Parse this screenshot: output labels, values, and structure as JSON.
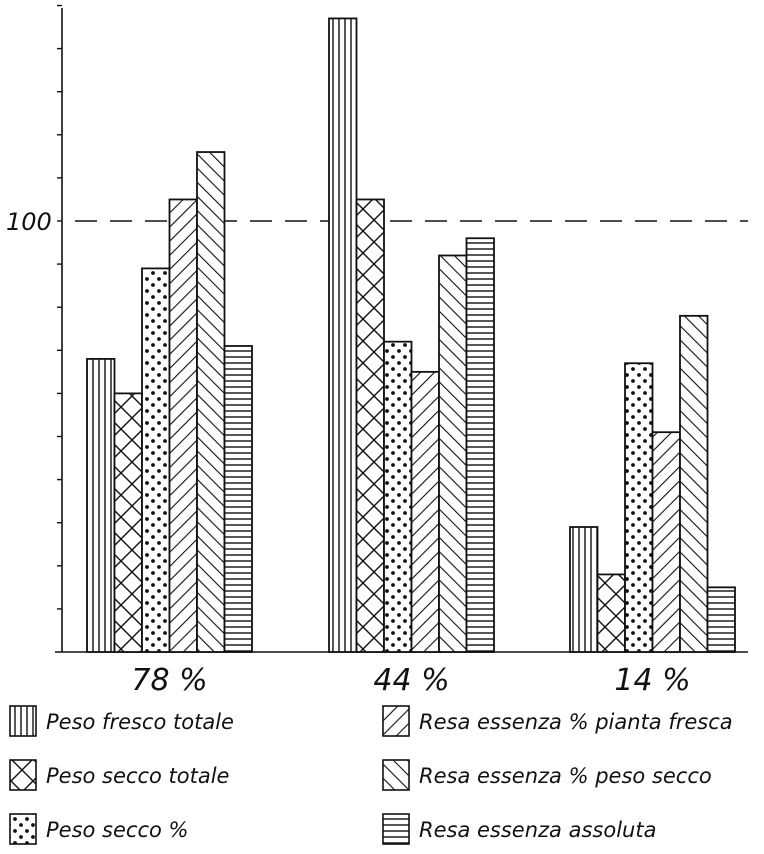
{
  "chart_data": {
    "type": "bar",
    "categories": [
      "78 %",
      "44 %",
      "14 %"
    ],
    "reference_line": {
      "value": 100,
      "style": "dashed"
    },
    "y_tick_labels": [
      {
        "value": 100,
        "label": "100"
      }
    ],
    "ylim": [
      0,
      150
    ],
    "y_minor_tick_step": 10,
    "grid": false,
    "legend_position": "bottom",
    "series": [
      {
        "name": "Peso fresco totale",
        "pattern": "vertical-lines",
        "values": [
          68,
          147,
          29
        ]
      },
      {
        "name": "Peso secco totale",
        "pattern": "crosshatch",
        "values": [
          60,
          105,
          18
        ]
      },
      {
        "name": "Peso secco %",
        "pattern": "dots",
        "values": [
          89,
          72,
          67
        ]
      },
      {
        "name": "Resa essenza % pianta fresca",
        "pattern": "diagonal-up",
        "values": [
          105,
          65,
          51
        ]
      },
      {
        "name": "Resa essenza % peso secco",
        "pattern": "diagonal-down",
        "values": [
          116,
          92,
          78
        ]
      },
      {
        "name": "Resa essenza assoluta",
        "pattern": "horizontal-lines",
        "values": [
          71,
          96,
          15
        ]
      }
    ]
  },
  "colors": {
    "ink": "#111111",
    "background": "#ffffff"
  }
}
